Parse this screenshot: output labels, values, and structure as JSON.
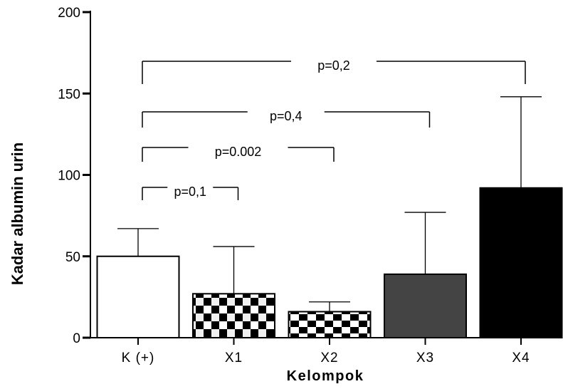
{
  "chart_data": {
    "type": "bar",
    "xlabel": "Kelompok",
    "ylabel": "Kadar albumin urin",
    "ylim": [
      0,
      200
    ],
    "yticks": [
      0,
      50,
      100,
      150,
      200
    ],
    "categories": [
      "K (+)",
      "X1",
      "X2",
      "X3",
      "X4"
    ],
    "values": [
      50,
      27,
      16,
      39,
      92
    ],
    "errors": [
      17,
      29,
      6,
      38,
      56
    ],
    "bar_styles": [
      "white",
      "checker",
      "checker-dense",
      "gray",
      "black"
    ],
    "colors": {
      "gray": "#444444",
      "black": "#000000",
      "white": "#ffffff"
    },
    "comparisons": [
      {
        "label": "p=0,1",
        "from": 0,
        "to": 1
      },
      {
        "label": "p=0.002",
        "from": 0,
        "to": 2
      },
      {
        "label": "p=0,4",
        "from": 0,
        "to": 3
      },
      {
        "label": "p=0,2",
        "from": 0,
        "to": 4
      }
    ]
  }
}
